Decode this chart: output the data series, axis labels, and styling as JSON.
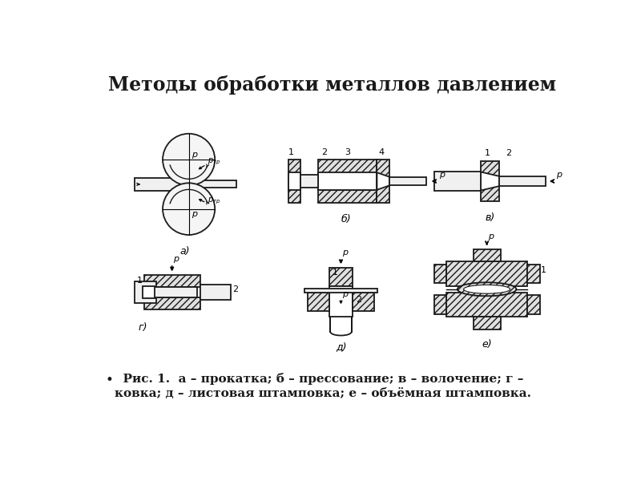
{
  "title": "Методы обработки металлов давлением",
  "caption_line1": "  Рис. 1.  а – прокатка; б – прессование; в – волочение; г –",
  "caption_line2": "ковка; д – листовая штамповка; е – объёмная штамповка.",
  "bg_color": "#ffffff",
  "fg_color": "#1a1a1a"
}
